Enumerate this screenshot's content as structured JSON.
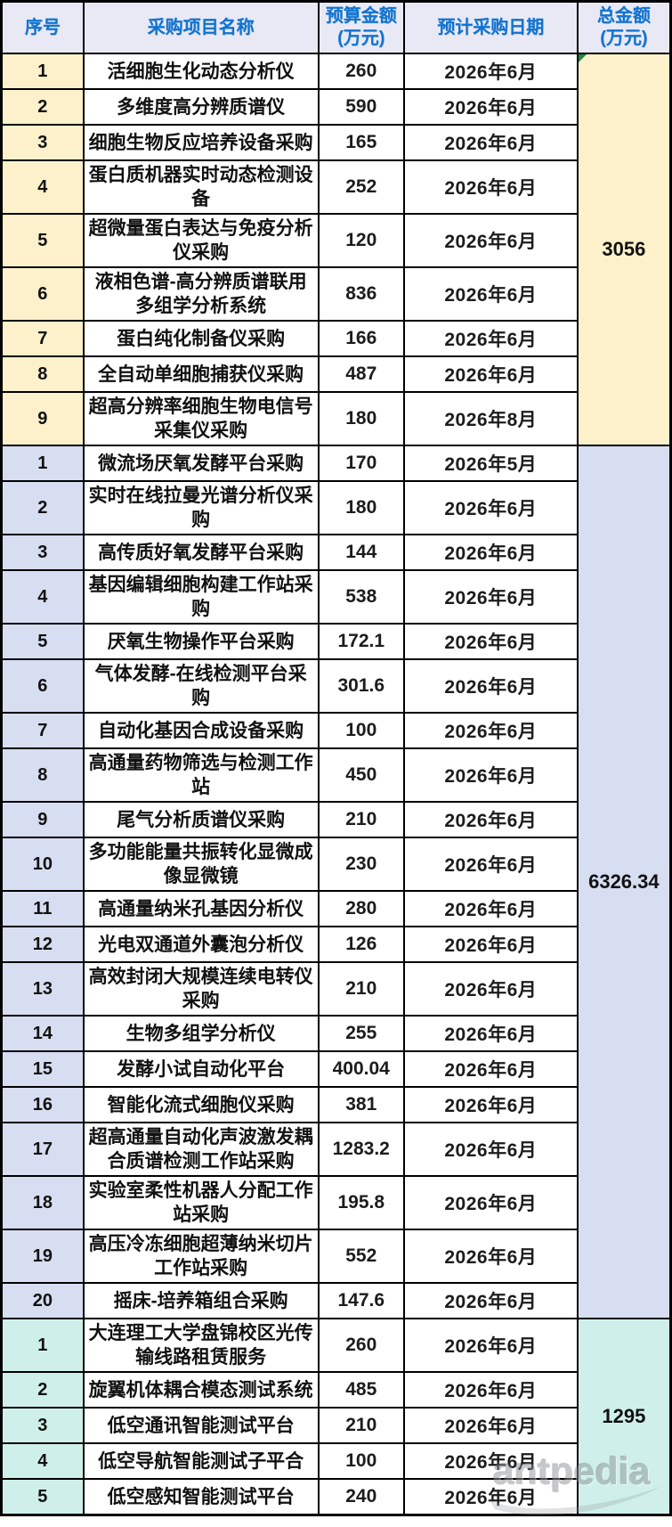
{
  "table": {
    "header": {
      "col_index": "序号",
      "col_name": "采购项目名称",
      "col_budget_line1": "预算金额",
      "col_budget_line2": "(万元)",
      "col_date": "预计采购日期",
      "col_total_line1": "总金额",
      "col_total_line2": "(万元)"
    },
    "groups": [
      {
        "total": "3056",
        "accent": "#FCF1CB",
        "rows": [
          {
            "index": "1",
            "name": "活细胞生化动态分析仪",
            "budget": "260",
            "date": "2026年6月"
          },
          {
            "index": "2",
            "name": "多维度高分辨质谱仪",
            "budget": "590",
            "date": "2026年6月"
          },
          {
            "index": "3",
            "name": "细胞生物反应培养设备采购",
            "budget": "165",
            "date": "2026年6月"
          },
          {
            "index": "4",
            "name": "蛋白质机器实时动态检测设备",
            "budget": "252",
            "date": "2026年6月"
          },
          {
            "index": "5",
            "name": "超微量蛋白表达与免疫分析仪采购",
            "budget": "120",
            "date": "2026年6月"
          },
          {
            "index": "6",
            "name": "液相色谱-高分辨质谱联用多组学分析系统",
            "budget": "836",
            "date": "2026年6月"
          },
          {
            "index": "7",
            "name": "蛋白纯化制备仪采购",
            "budget": "166",
            "date": "2026年6月"
          },
          {
            "index": "8",
            "name": "全自动单细胞捕获仪采购",
            "budget": "487",
            "date": "2026年6月"
          },
          {
            "index": "9",
            "name": "超高分辨率细胞生物电信号采集仪采购",
            "budget": "180",
            "date": "2026年8月"
          }
        ]
      },
      {
        "total": "6326.34",
        "accent": "#D7DEF1",
        "rows": [
          {
            "index": "1",
            "name": "微流场厌氧发酵平台采购",
            "budget": "170",
            "date": "2026年5月"
          },
          {
            "index": "2",
            "name": "实时在线拉曼光谱分析仪采购",
            "budget": "180",
            "date": "2026年6月"
          },
          {
            "index": "3",
            "name": "高传质好氧发酵平台采购",
            "budget": "144",
            "date": "2026年6月"
          },
          {
            "index": "4",
            "name": "基因编辑细胞构建工作站采购",
            "budget": "538",
            "date": "2026年6月"
          },
          {
            "index": "5",
            "name": "厌氧生物操作平台采购",
            "budget": "172.1",
            "date": "2026年6月"
          },
          {
            "index": "6",
            "name": "气体发酵-在线检测平台采购",
            "budget": "301.6",
            "date": "2026年6月"
          },
          {
            "index": "7",
            "name": "自动化基因合成设备采购",
            "budget": "100",
            "date": "2026年6月"
          },
          {
            "index": "8",
            "name": "高通量药物筛选与检测工作站",
            "budget": "450",
            "date": "2026年6月"
          },
          {
            "index": "9",
            "name": "尾气分析质谱仪采购",
            "budget": "210",
            "date": "2026年6月"
          },
          {
            "index": "10",
            "name": "多功能能量共振转化显微成像显微镜",
            "budget": "230",
            "date": "2026年6月"
          },
          {
            "index": "11",
            "name": "高通量纳米孔基因分析仪",
            "budget": "280",
            "date": "2026年6月"
          },
          {
            "index": "12",
            "name": "光电双通道外囊泡分析仪",
            "budget": "126",
            "date": "2026年6月"
          },
          {
            "index": "13",
            "name": "高效封闭大规模连续电转仪采购",
            "budget": "210",
            "date": "2026年6月"
          },
          {
            "index": "14",
            "name": "生物多组学分析仪",
            "budget": "255",
            "date": "2026年6月"
          },
          {
            "index": "15",
            "name": "发酵小试自动化平台",
            "budget": "400.04",
            "date": "2026年6月"
          },
          {
            "index": "16",
            "name": "智能化流式细胞仪采购",
            "budget": "381",
            "date": "2026年6月"
          },
          {
            "index": "17",
            "name": "超高通量自动化声波激发耦合质谱检测工作站采购",
            "budget": "1283.2",
            "date": "2026年6月"
          },
          {
            "index": "18",
            "name": "实验室柔性机器人分配工作站采购",
            "budget": "195.8",
            "date": "2026年6月"
          },
          {
            "index": "19",
            "name": "高压冷冻细胞超薄纳米切片工作站采购",
            "budget": "552",
            "date": "2026年6月"
          },
          {
            "index": "20",
            "name": "摇床-培养箱组合采购",
            "budget": "147.6",
            "date": "2026年6月"
          }
        ]
      },
      {
        "total": "1295",
        "accent": "#CFF0EA",
        "rows": [
          {
            "index": "1",
            "name": "大连理工大学盘锦校区光传输线路租赁服务",
            "budget": "260",
            "date": "2026年6月"
          },
          {
            "index": "2",
            "name": "旋翼机体耦合模态测试系统",
            "budget": "485",
            "date": "2026年6月"
          },
          {
            "index": "3",
            "name": "低空通讯智能测试平台",
            "budget": "210",
            "date": "2026年6月"
          },
          {
            "index": "4",
            "name": "低空导航智能测试子平合",
            "budget": "100",
            "date": "2026年6月"
          },
          {
            "index": "5",
            "name": "低空感知智能测试平台",
            "budget": "240",
            "date": "2026年6月"
          }
        ]
      }
    ]
  },
  "colors": {
    "header_bg": "#E9E9F6",
    "header_text": "#0F74D1",
    "group1_accent": "#FCF1CB",
    "group2_accent": "#D7DEF1",
    "group3_accent": "#CFF0EA",
    "border": "#000000",
    "comment_flag": "#1F8A44",
    "watermark_gray": "#8F9398"
  },
  "watermark": {
    "text": "antpedia"
  }
}
